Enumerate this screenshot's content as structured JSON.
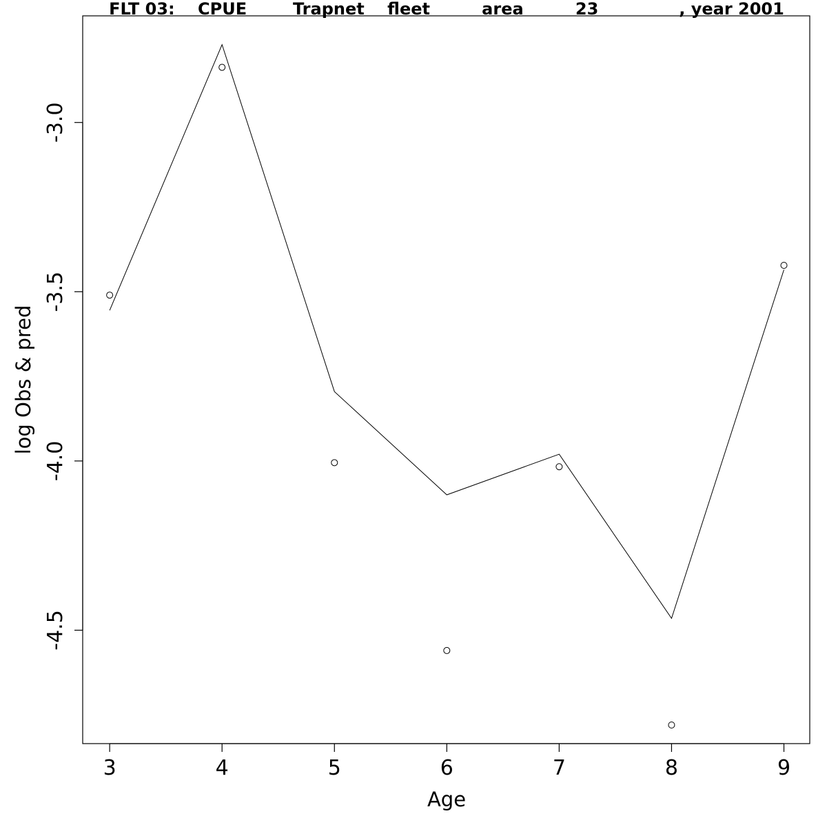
{
  "chart_data": {
    "type": "line",
    "title": "FLT 03:    CPUE        Trapnet    fleet         area         23              , year 2001",
    "xlabel": "Age",
    "ylabel": "log Obs & pred",
    "x": [
      3,
      4,
      5,
      6,
      7,
      8,
      9
    ],
    "xlim": [
      2.76,
      9.23
    ],
    "ylim": [
      -4.835,
      -2.685
    ],
    "x_ticks": [
      3,
      4,
      5,
      6,
      7,
      8,
      9
    ],
    "y_ticks": [
      -3.0,
      -3.5,
      -4.0,
      -4.5
    ],
    "series": [
      {
        "kind": "line",
        "values": [
          -3.555,
          -2.77,
          -3.795,
          -4.1,
          -3.98,
          -4.465,
          -3.435
        ]
      },
      {
        "kind": "points",
        "values": [
          -3.51,
          -2.837,
          -4.005,
          -4.56,
          -4.017,
          -4.78,
          -3.422
        ]
      }
    ],
    "grid": false,
    "legend": "none"
  }
}
